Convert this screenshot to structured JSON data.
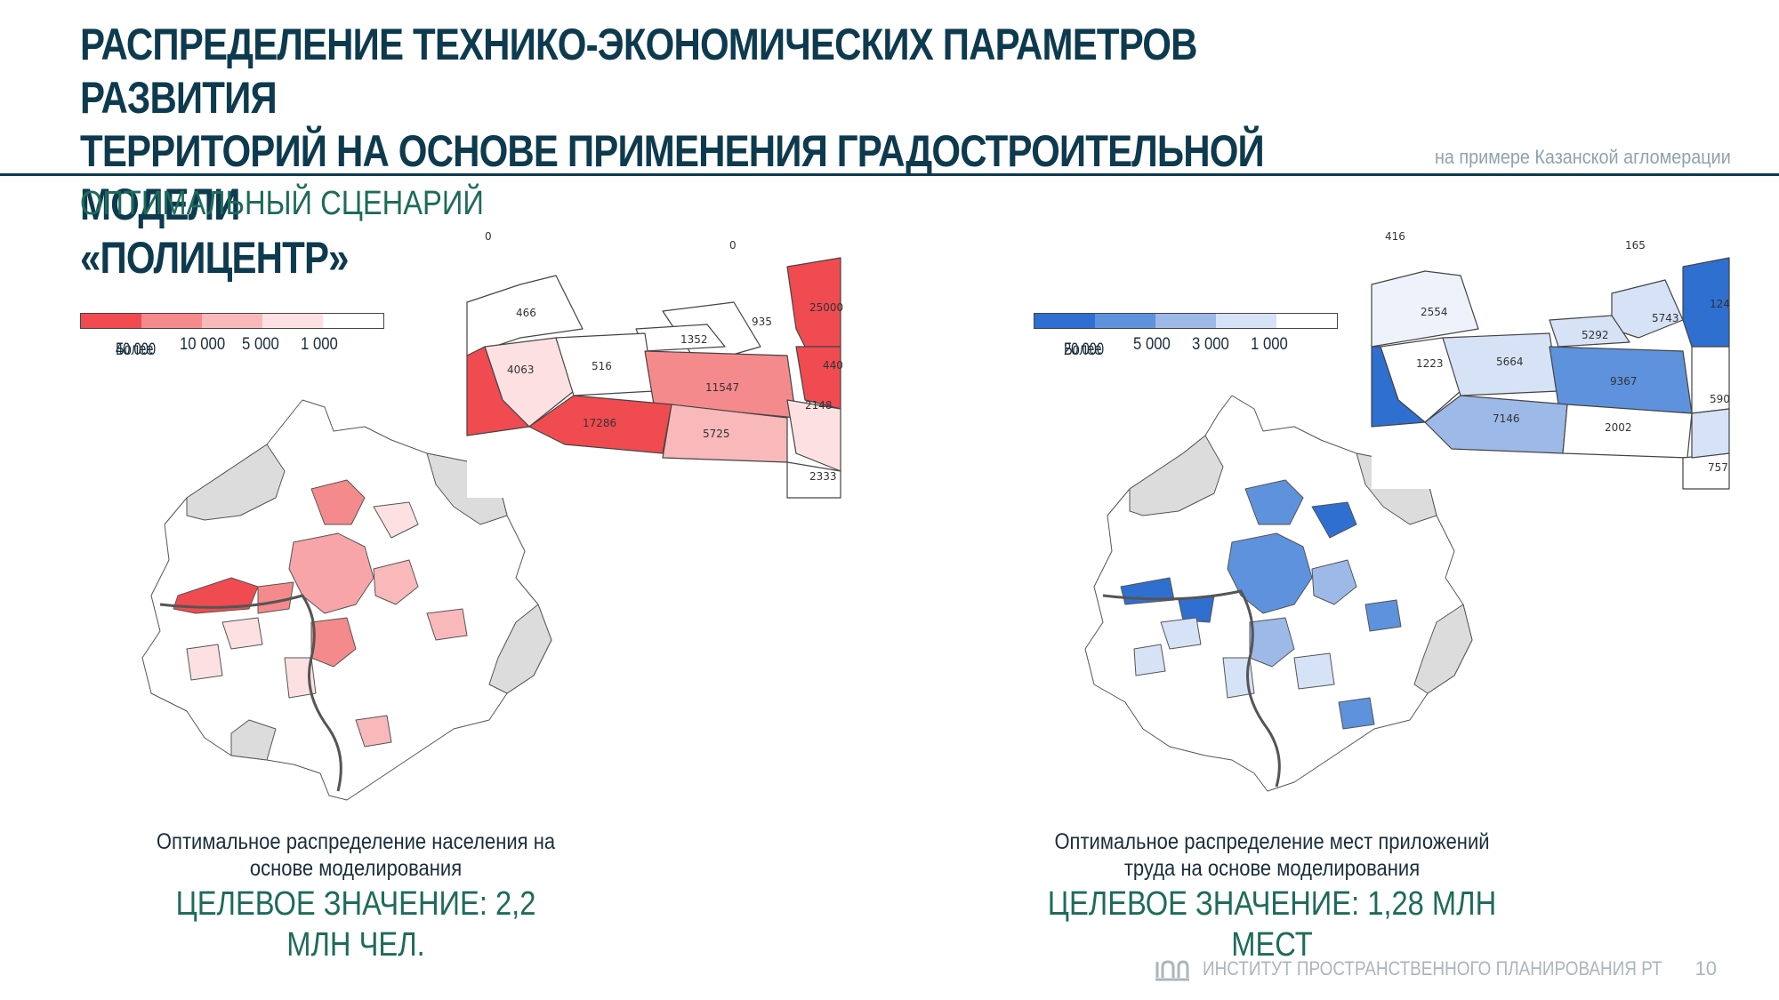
{
  "header": {
    "title_line1": "РАСПРЕДЕЛЕНИЕ ТЕХНИКО-ЭКОНОМИЧЕСКИХ ПАРАМЕТРОВ РАЗВИТИЯ",
    "title_line2": "ТЕРРИТОРИЙ НА ОСНОВЕ ПРИМЕНЕНИЯ ГРАДОСТРОИТЕЛЬНОЙ МОДЕЛИ",
    "title_line3": "«ПОЛИЦЕНТР»",
    "subtitle": "на примере Казанской агломерации",
    "scenario": "ОПТИМАЛЬНЫЙ СЦЕНАРИЙ"
  },
  "left_map": {
    "legend": {
      "label1_line1": "Более",
      "label1_line2": "40 000",
      "label2": "10 000",
      "label3": "5 000",
      "label4": "1 000",
      "colors": [
        "#f04b50",
        "#f58a8c",
        "#f9b8ba",
        "#fde1e2",
        "#ffffff"
      ]
    },
    "inset_values": [
      "0",
      "0",
      "466",
      "935",
      "25000",
      "1352",
      "4063",
      "516",
      "11547",
      "440",
      "2148",
      "17286",
      "5725",
      "2333"
    ],
    "caption_line1": "Оптимальное распределение населения на",
    "caption_line2": "основе моделирования",
    "target": "ЦЕЛЕВОЕ ЗНАЧЕНИЕ: 2,2 МЛН ЧЕЛ."
  },
  "right_map": {
    "legend": {
      "label1_line1": "Более",
      "label1_line2": "20 000",
      "label2": "5 000",
      "label3": "3 000",
      "label4": "1 000",
      "colors": [
        "#2f6fd0",
        "#5e92dc",
        "#9db9e8",
        "#d6e2f5",
        "#ffffff"
      ]
    },
    "inset_values": [
      "416",
      "165",
      "2554",
      "5743",
      "124",
      "5292",
      "1223",
      "5664",
      "9367",
      "590",
      "7146",
      "2002",
      "757"
    ],
    "caption_line1": "Оптимальное распределение мест приложений",
    "caption_line2": "труда на основе моделирования",
    "target": "ЦЕЛЕВОЕ ЗНАЧЕНИЕ: 1,28 МЛН МЕСТ"
  },
  "footer": {
    "org": "ИНСТИТУТ ПРОСТРАНСТВЕННОГО ПЛАНИРОВАНИЯ РТ",
    "page": "10"
  }
}
